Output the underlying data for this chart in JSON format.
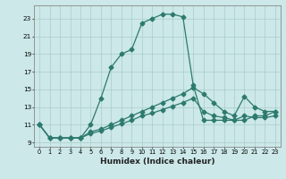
{
  "xlabel": "Humidex (Indice chaleur)",
  "bg_color": "#cce8e8",
  "line_color": "#2d7a6e",
  "grid_color": "#aacccc",
  "line1_x": [
    0,
    1,
    2,
    3,
    4,
    5,
    6,
    7,
    8,
    9,
    10,
    11,
    12,
    13,
    14,
    15,
    16,
    17,
    18,
    19,
    20,
    21,
    22,
    23
  ],
  "line1_y": [
    11,
    9.5,
    9.5,
    9.5,
    9.5,
    11,
    14,
    17.5,
    19,
    19.5,
    22.5,
    23,
    23.5,
    23.5,
    23.2,
    15.5,
    11.5,
    11.5,
    11.5,
    11.5,
    11.5,
    12,
    12,
    12.5
  ],
  "line2_x": [
    0,
    1,
    2,
    3,
    4,
    5,
    6,
    7,
    8,
    9,
    10,
    11,
    12,
    13,
    14,
    15,
    16,
    17,
    18,
    19,
    20,
    21,
    22,
    23
  ],
  "line2_y": [
    11,
    9.5,
    9.5,
    9.5,
    9.5,
    10.2,
    10.5,
    11,
    11.5,
    12,
    12.5,
    13,
    13.5,
    14,
    14.5,
    15.2,
    14.5,
    13.5,
    12.5,
    12,
    14.2,
    13,
    12.5,
    12.5
  ],
  "line3_x": [
    0,
    1,
    2,
    3,
    4,
    5,
    6,
    7,
    8,
    9,
    10,
    11,
    12,
    13,
    14,
    15,
    16,
    17,
    18,
    19,
    20,
    21,
    22,
    23
  ],
  "line3_y": [
    11,
    9.5,
    9.5,
    9.5,
    9.5,
    10,
    10.3,
    10.7,
    11.1,
    11.5,
    12,
    12.3,
    12.7,
    13.1,
    13.5,
    14,
    12.5,
    12,
    11.8,
    11.5,
    12,
    11.8,
    11.8,
    12
  ],
  "xlim": [
    -0.5,
    23.5
  ],
  "ylim": [
    8.5,
    24.5
  ],
  "yticks": [
    9,
    11,
    13,
    15,
    17,
    19,
    21,
    23
  ],
  "xticks": [
    0,
    1,
    2,
    3,
    4,
    5,
    6,
    7,
    8,
    9,
    10,
    11,
    12,
    13,
    14,
    15,
    16,
    17,
    18,
    19,
    20,
    21,
    22,
    23
  ]
}
